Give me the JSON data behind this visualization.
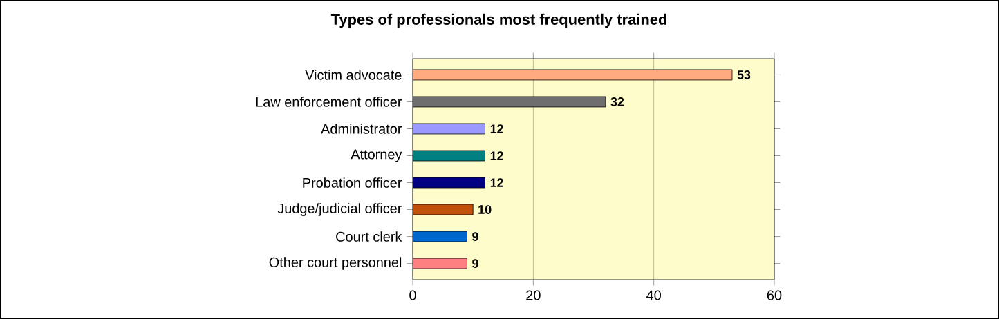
{
  "chart_data": {
    "type": "bar",
    "orientation": "horizontal",
    "title": "Types of professionals most frequently trained",
    "categories": [
      "Victim advocate",
      "Law enforcement officer",
      "Administrator",
      "Attorney",
      "Probation officer",
      "Judge/judicial officer",
      "Court clerk",
      "Other court personnel"
    ],
    "values": [
      53,
      32,
      12,
      12,
      12,
      10,
      9,
      9
    ],
    "colors": [
      "#ffaa80",
      "#6e6e6e",
      "#9999ff",
      "#008080",
      "#000080",
      "#c0500a",
      "#0066cc",
      "#ff8080"
    ],
    "xlim": [
      0,
      60
    ],
    "xticks": [
      0,
      20,
      40,
      60
    ],
    "grid": "x",
    "data_labels": true
  }
}
